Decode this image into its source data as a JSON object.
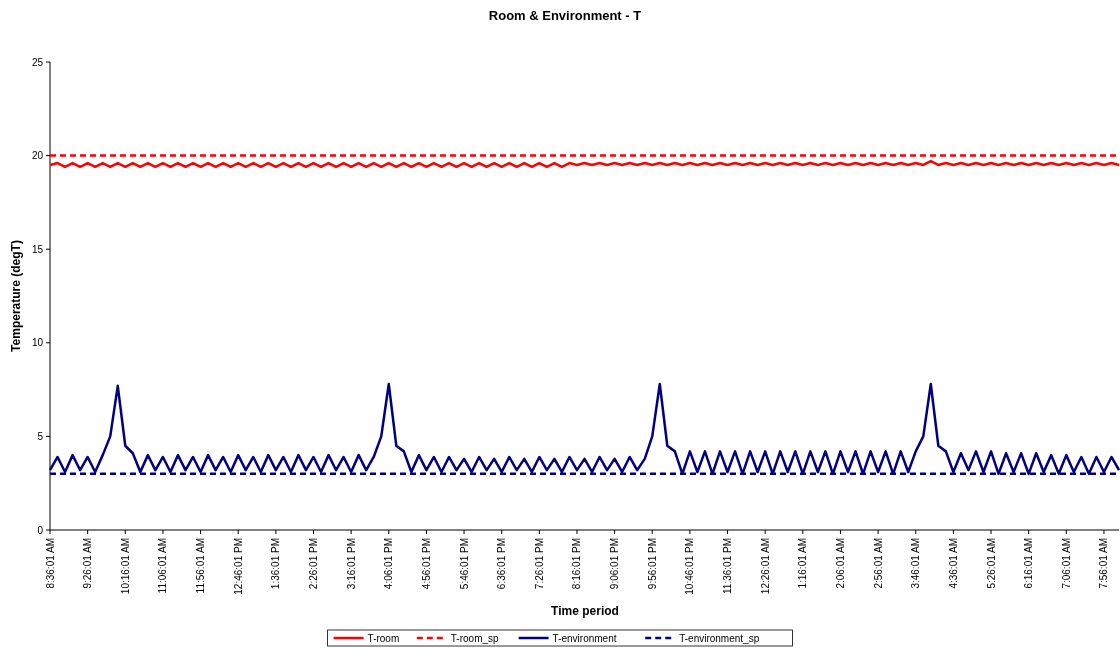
{
  "chart_data": {
    "type": "line",
    "title": "Room & Environment - T",
    "xlabel": "Time period",
    "ylabel": "Temperature (degT)",
    "ylim": [
      0,
      25
    ],
    "yticks": [
      0,
      5,
      10,
      15,
      20,
      25
    ],
    "legend": "bottom",
    "categories": [
      "8:36:01 AM",
      null,
      null,
      null,
      null,
      "9:26:01 AM",
      null,
      null,
      null,
      null,
      "10:16:01 AM",
      null,
      null,
      null,
      null,
      "11:06:01 AM",
      null,
      null,
      null,
      null,
      "11:56:01 AM",
      null,
      null,
      null,
      null,
      "12:46:01 PM",
      null,
      null,
      null,
      null,
      "1:36:01 PM",
      null,
      null,
      null,
      null,
      "2:26:01 PM",
      null,
      null,
      null,
      null,
      "3:16:01 PM",
      null,
      null,
      null,
      null,
      "4:06:01 PM",
      null,
      null,
      null,
      null,
      "4:56:01 PM",
      null,
      null,
      null,
      null,
      "5:46:01 PM",
      null,
      null,
      null,
      null,
      "6:36:01 PM",
      null,
      null,
      null,
      null,
      "7:26:01 PM",
      null,
      null,
      null,
      null,
      "8:16:01 PM",
      null,
      null,
      null,
      null,
      "9:06:01 PM",
      null,
      null,
      null,
      null,
      "9:56:01 PM",
      null,
      null,
      null,
      null,
      "10:46:01 PM",
      null,
      null,
      null,
      null,
      "11:36:01 PM",
      null,
      null,
      null,
      null,
      "12:26:01 AM",
      null,
      null,
      null,
      null,
      "1:16:01 AM",
      null,
      null,
      null,
      null,
      "2:06:01 AM",
      null,
      null,
      null,
      null,
      "2:56:01 AM",
      null,
      null,
      null,
      null,
      "3:46:01 AM",
      null,
      null,
      null,
      null,
      "4:36:01 AM",
      null,
      null,
      null,
      null,
      "5:26:01 AM",
      null,
      null,
      null,
      null,
      "6:16:01 AM",
      null,
      null,
      null,
      null,
      "7:06:01 AM",
      null,
      null,
      null,
      null,
      "7:56:01 AM",
      null,
      null
    ],
    "series": [
      {
        "name": "T-room",
        "color": "#ff0000",
        "line_style": "solid",
        "values": [
          19.5,
          19.6,
          19.4,
          19.6,
          19.4,
          19.6,
          19.4,
          19.6,
          19.4,
          19.6,
          19.4,
          19.6,
          19.4,
          19.6,
          19.4,
          19.6,
          19.4,
          19.6,
          19.4,
          19.6,
          19.4,
          19.6,
          19.4,
          19.6,
          19.4,
          19.6,
          19.4,
          19.6,
          19.4,
          19.6,
          19.4,
          19.6,
          19.4,
          19.6,
          19.4,
          19.6,
          19.4,
          19.6,
          19.4,
          19.6,
          19.4,
          19.6,
          19.4,
          19.6,
          19.4,
          19.6,
          19.4,
          19.6,
          19.4,
          19.6,
          19.4,
          19.6,
          19.4,
          19.6,
          19.4,
          19.6,
          19.4,
          19.6,
          19.4,
          19.6,
          19.4,
          19.6,
          19.4,
          19.6,
          19.4,
          19.6,
          19.4,
          19.6,
          19.4,
          19.6,
          19.5,
          19.6,
          19.5,
          19.6,
          19.5,
          19.6,
          19.5,
          19.6,
          19.5,
          19.6,
          19.5,
          19.6,
          19.5,
          19.6,
          19.5,
          19.6,
          19.5,
          19.6,
          19.5,
          19.6,
          19.5,
          19.6,
          19.5,
          19.6,
          19.5,
          19.6,
          19.5,
          19.6,
          19.5,
          19.6,
          19.5,
          19.6,
          19.5,
          19.6,
          19.5,
          19.6,
          19.5,
          19.6,
          19.5,
          19.6,
          19.5,
          19.6,
          19.5,
          19.6,
          19.5,
          19.6,
          19.5,
          19.7,
          19.5,
          19.6,
          19.5,
          19.6,
          19.5,
          19.6,
          19.5,
          19.6,
          19.5,
          19.6,
          19.5,
          19.6,
          19.5,
          19.6,
          19.5,
          19.6,
          19.5,
          19.6,
          19.5,
          19.6,
          19.5,
          19.6,
          19.5,
          19.6,
          19.5
        ]
      },
      {
        "name": "T-room_sp",
        "color": "#ff0000",
        "line_style": "dashed",
        "values": [
          20,
          20,
          20,
          20,
          20,
          20,
          20,
          20,
          20,
          20,
          20,
          20,
          20,
          20,
          20,
          20,
          20,
          20,
          20,
          20,
          20,
          20,
          20,
          20,
          20,
          20,
          20,
          20,
          20,
          20,
          20,
          20,
          20,
          20,
          20,
          20,
          20,
          20,
          20,
          20,
          20,
          20,
          20,
          20,
          20,
          20,
          20,
          20,
          20,
          20,
          20,
          20,
          20,
          20,
          20,
          20,
          20,
          20,
          20,
          20,
          20,
          20,
          20,
          20,
          20,
          20,
          20,
          20,
          20,
          20,
          20,
          20,
          20,
          20,
          20,
          20,
          20,
          20,
          20,
          20,
          20,
          20,
          20,
          20,
          20,
          20,
          20,
          20,
          20,
          20,
          20,
          20,
          20,
          20,
          20,
          20,
          20,
          20,
          20,
          20,
          20,
          20,
          20,
          20,
          20,
          20,
          20,
          20,
          20,
          20,
          20,
          20,
          20,
          20,
          20,
          20,
          20,
          20,
          20,
          20,
          20,
          20,
          20,
          20,
          20,
          20,
          20,
          20,
          20,
          20,
          20,
          20,
          20,
          20,
          20,
          20,
          20,
          20,
          20,
          20,
          20,
          20,
          20
        ]
      },
      {
        "name": "T-environment",
        "color": "#000080",
        "line_style": "solid",
        "values": [
          3.2,
          3.9,
          3.1,
          4.0,
          3.2,
          3.9,
          3.1,
          4.0,
          5.0,
          7.7,
          4.5,
          4.1,
          3.1,
          4.0,
          3.2,
          3.9,
          3.1,
          4.0,
          3.2,
          3.9,
          3.1,
          4.0,
          3.2,
          3.9,
          3.1,
          4.0,
          3.2,
          3.9,
          3.1,
          4.0,
          3.2,
          3.9,
          3.1,
          4.0,
          3.2,
          3.9,
          3.1,
          4.0,
          3.2,
          3.9,
          3.1,
          4.0,
          3.2,
          3.9,
          5.0,
          7.8,
          4.5,
          4.2,
          3.1,
          4.0,
          3.2,
          3.9,
          3.1,
          3.9,
          3.2,
          3.8,
          3.1,
          3.9,
          3.2,
          3.8,
          3.1,
          3.9,
          3.2,
          3.8,
          3.1,
          3.9,
          3.2,
          3.8,
          3.1,
          3.9,
          3.2,
          3.8,
          3.1,
          3.9,
          3.2,
          3.8,
          3.1,
          3.9,
          3.2,
          3.8,
          5.0,
          7.8,
          4.5,
          4.2,
          3.0,
          4.2,
          3.1,
          4.2,
          3.0,
          4.2,
          3.1,
          4.2,
          3.0,
          4.2,
          3.1,
          4.2,
          3.0,
          4.2,
          3.1,
          4.2,
          3.0,
          4.2,
          3.1,
          4.2,
          3.0,
          4.2,
          3.1,
          4.2,
          3.0,
          4.2,
          3.1,
          4.2,
          3.0,
          4.2,
          3.1,
          4.2,
          5.0,
          7.8,
          4.5,
          4.2,
          3.1,
          4.1,
          3.2,
          4.2,
          3.1,
          4.2,
          3.0,
          4.1,
          3.1,
          4.1,
          3.0,
          4.1,
          3.1,
          4.0,
          3.0,
          4.0,
          3.1,
          3.9,
          3.0,
          3.9,
          3.1,
          3.9,
          3.2
        ]
      },
      {
        "name": "T-environment_sp",
        "color": "#000080",
        "line_style": "dashed",
        "values": [
          3,
          3,
          3,
          3,
          3,
          3,
          3,
          3,
          3,
          3,
          3,
          3,
          3,
          3,
          3,
          3,
          3,
          3,
          3,
          3,
          3,
          3,
          3,
          3,
          3,
          3,
          3,
          3,
          3,
          3,
          3,
          3,
          3,
          3,
          3,
          3,
          3,
          3,
          3,
          3,
          3,
          3,
          3,
          3,
          3,
          3,
          3,
          3,
          3,
          3,
          3,
          3,
          3,
          3,
          3,
          3,
          3,
          3,
          3,
          3,
          3,
          3,
          3,
          3,
          3,
          3,
          3,
          3,
          3,
          3,
          3,
          3,
          3,
          3,
          3,
          3,
          3,
          3,
          3,
          3,
          3,
          3,
          3,
          3,
          3,
          3,
          3,
          3,
          3,
          3,
          3,
          3,
          3,
          3,
          3,
          3,
          3,
          3,
          3,
          3,
          3,
          3,
          3,
          3,
          3,
          3,
          3,
          3,
          3,
          3,
          3,
          3,
          3,
          3,
          3,
          3,
          3,
          3,
          3,
          3,
          3,
          3,
          3,
          3,
          3,
          3,
          3,
          3,
          3,
          3,
          3,
          3,
          3,
          3,
          3,
          3,
          3,
          3,
          3,
          3,
          3,
          3,
          3
        ]
      }
    ]
  }
}
